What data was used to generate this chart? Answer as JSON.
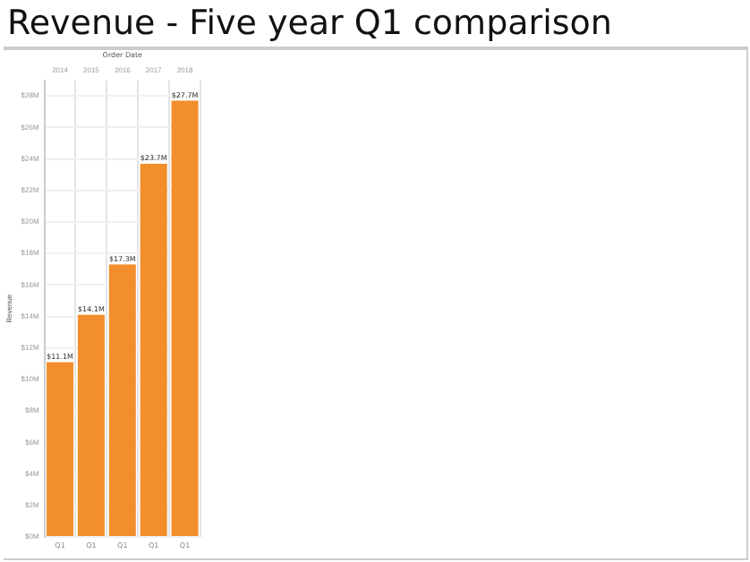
{
  "chart_data": {
    "type": "bar",
    "title": "Revenue  - Five year Q1 comparison",
    "xlabel": "Order Date",
    "ylabel": "Revenue",
    "categories": [
      "2014",
      "2015",
      "2016",
      "2017",
      "2018"
    ],
    "values": [
      11.1,
      14.1,
      17.3,
      23.7,
      27.7
    ],
    "color": "#f28e2b",
    "value_labels": [
      "$11.1M",
      "$14.1M",
      "$17.3M",
      "$23.7M",
      "$27.7M"
    ],
    "annotations": [
      "Q1",
      "Q1",
      "Q1",
      "Q1",
      "Q1"
    ],
    "ylim": [
      0,
      29
    ],
    "yticks": [
      {
        "value": 0,
        "label": "$0M"
      },
      {
        "value": 2,
        "label": "$2M"
      },
      {
        "value": 4,
        "label": "$4M"
      },
      {
        "value": 6,
        "label": "$6M"
      },
      {
        "value": 8,
        "label": "$8M"
      },
      {
        "value": 10,
        "label": "$10M"
      },
      {
        "value": 12,
        "label": "$12M"
      },
      {
        "value": 14,
        "label": "$14M"
      },
      {
        "value": 16,
        "label": "$16M"
      },
      {
        "value": 18,
        "label": "$18M"
      },
      {
        "value": 20,
        "label": "$20M"
      },
      {
        "value": 22,
        "label": "$22M"
      },
      {
        "value": 24,
        "label": "$24M"
      },
      {
        "value": 26,
        "label": "$26M"
      },
      {
        "value": 28,
        "label": "$28M"
      }
    ],
    "grid": true,
    "legend": false
  }
}
